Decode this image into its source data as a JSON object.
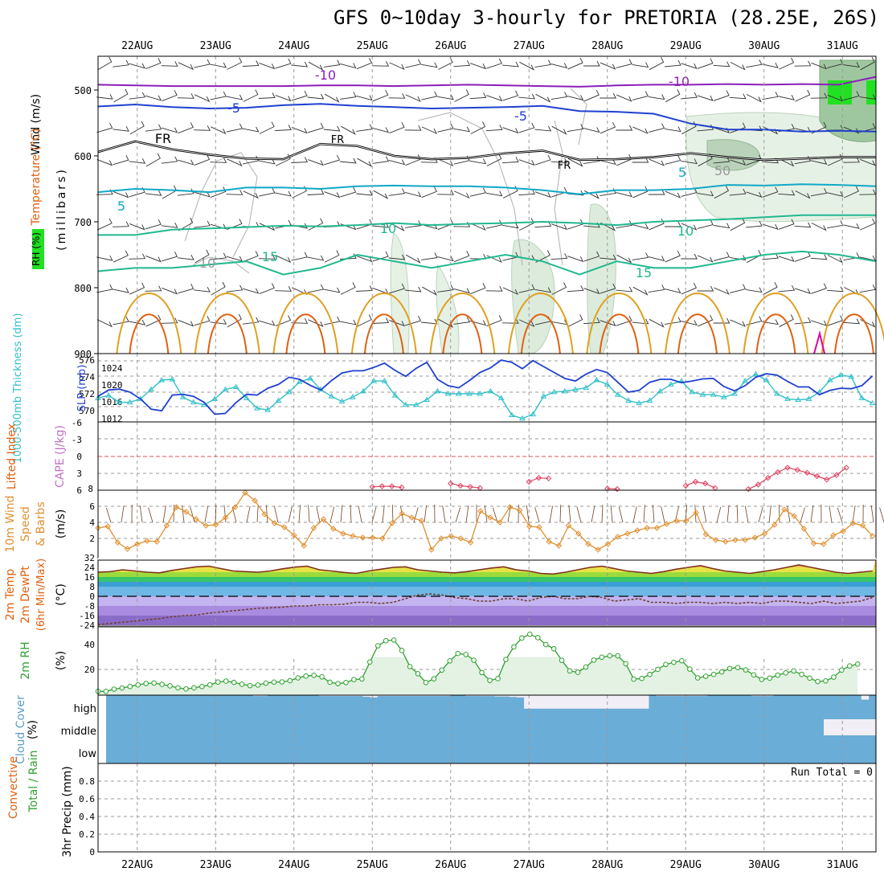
{
  "title": "GFS 0~10day 3-hourly for PRETORIA (28.25E, 26S)",
  "dates": [
    "22AUG",
    "23AUG",
    "24AUG",
    "25AUG",
    "26AUG",
    "27AUG",
    "28AUG",
    "29AUG",
    "30AUG",
    "31AUG"
  ],
  "colors": {
    "purple": "#8b1fb8",
    "blue": "#2040d0",
    "teal": "#10a8c8",
    "green": "#20b890",
    "orange": "#e0a020",
    "red": "#e06010",
    "magenta": "#e000a0",
    "slp": "#2040d0",
    "thick": "#30c0c8",
    "cape": "#e04060",
    "wind": "#e09030",
    "rh": "#30a030",
    "cloud": "#6aadd6"
  },
  "labels": {
    "p1_axis": "Wind (m/s)",
    "p1_temp": "Temperature (°C)",
    "p1_rh": "RH (%)",
    "p1_mb": "(millibars)",
    "p2_thick": "1000-500mb Thickness (dm)",
    "p2_slp": "SLP (mb)",
    "p3_li": "Lifted Index",
    "p3_cape": "CAPE (J/kg)",
    "p4_a": "10m Wind",
    "p4_b": "Speed",
    "p4_c": "& Barbs",
    "p4_unit": "(m/s)",
    "p5_a": "2m Temp",
    "p5_b": "2m DewPt",
    "p5_c": "(6hr Min/Max)",
    "p5_unit": "(°C)",
    "p6_a": "2m RH",
    "p6_unit": "(%)",
    "p7_a": "Cloud Cover",
    "p7_unit": "(%)",
    "p8_a": "Total / Rain",
    "p8_b": "Convective",
    "p8_c": "3hr Precip (mm)",
    "run_total": "Run Total = 0"
  },
  "chart_data": [
    {
      "type": "contour",
      "name": "upper-air",
      "y_ticks": [
        "500",
        "600",
        "700",
        "800",
        "900"
      ],
      "contour_labels": [
        {
          "level": "-10",
          "series": "temperature"
        },
        {
          "level": "-5",
          "series": "temperature"
        },
        {
          "level": "FR",
          "series": "freezing level"
        },
        {
          "level": "5",
          "series": "temperature"
        },
        {
          "level": "10",
          "series": "temperature"
        },
        {
          "level": "15",
          "series": "temperature"
        },
        {
          "level": "10",
          "series": "RH"
        },
        {
          "level": "50",
          "series": "RH"
        }
      ],
      "isotherms": [
        {
          "level": -10,
          "color": "purple",
          "mb": [
            492,
            493,
            494,
            494,
            494,
            494,
            493,
            493,
            494,
            493,
            492,
            493,
            494,
            495,
            493,
            492,
            492,
            491,
            492,
            491,
            492,
            480
          ]
        },
        {
          "level": -5,
          "color": "blue",
          "mb": [
            525,
            522,
            526,
            528,
            527,
            523,
            521,
            524,
            526,
            528,
            527,
            526,
            524,
            532,
            533,
            536,
            551,
            560,
            560,
            563,
            562,
            563
          ]
        },
        {
          "level": 0,
          "color": "black",
          "mb": [
            594,
            578,
            590,
            598,
            604,
            605,
            582,
            585,
            600,
            605,
            603,
            596,
            592,
            606,
            605,
            602,
            596,
            602,
            606,
            604,
            602,
            602
          ]
        },
        {
          "level": 5,
          "color": "teal",
          "mb": [
            655,
            650,
            652,
            655,
            648,
            648,
            650,
            646,
            645,
            646,
            646,
            648,
            652,
            658,
            652,
            652,
            650,
            644,
            645,
            643,
            644,
            646
          ]
        },
        {
          "level": 10,
          "color": "green",
          "mb": [
            720,
            720,
            712,
            710,
            708,
            706,
            707,
            705,
            702,
            705,
            703,
            702,
            700,
            702,
            705,
            700,
            698,
            696,
            693,
            690,
            690,
            690
          ]
        },
        {
          "level": 15,
          "color": "green",
          "mb": [
            775,
            770,
            770,
            765,
            760,
            780,
            770,
            750,
            760,
            770,
            760,
            750,
            760,
            780,
            760,
            770,
            770,
            760,
            750,
            745,
            750,
            760
          ]
        }
      ]
    },
    {
      "type": "line",
      "name": "slp-thickness",
      "y_left": {
        "label": "1000-500mb Thickness (dm)",
        "ticks": [
          "570",
          "572",
          "574",
          "576"
        ],
        "ylim": [
          569,
          577
        ]
      },
      "y_right": {
        "label": "SLP (mb)",
        "ticks": [
          "1012",
          "1016",
          "1020",
          "1024"
        ],
        "ylim": [
          1010,
          1026
        ]
      },
      "x_step_days": 0.125,
      "series": [
        {
          "name": "Thickness",
          "color": "thick",
          "marker": "triangle",
          "values": [
            571.8,
            572.1,
            571.3,
            571.3,
            571.7,
            572.8,
            573.9,
            574.0,
            571.9,
            571.3,
            571.0,
            571.7,
            572.8,
            573.1,
            571.8,
            570.6,
            570.4,
            571.5,
            572.5,
            573.7,
            574.1,
            572.8,
            572.0,
            571.4,
            571.9,
            572.6,
            573.8,
            573.8,
            572.1,
            571.0,
            571.0,
            571.6,
            572.6,
            572.3,
            572.3,
            572.3,
            572.3,
            572.6,
            571.8,
            569.8,
            569.4,
            569.9,
            572.0,
            572.5,
            572.6,
            572.8,
            573.0,
            573.9,
            573.4,
            572.2,
            571.5,
            571.2,
            571.5,
            572.6,
            573.4,
            573.8,
            572.5,
            572.2,
            572.2,
            571.9,
            572.3,
            573.8,
            574.6,
            573.9,
            572.3,
            571.7,
            571.6,
            571.7,
            572.5,
            573.9,
            574.5,
            574.3,
            571.8,
            571.2
          ]
        },
        {
          "name": "SLP",
          "color": "slp",
          "marker": "none",
          "values": [
            1016.0,
            1017.5,
            1017.7,
            1017.0,
            1015.4,
            1013.0,
            1012.6,
            1016.3,
            1016.5,
            1016.0,
            1014.6,
            1011.8,
            1012.0,
            1014.5,
            1016.5,
            1016.3,
            1017.9,
            1018.8,
            1020.5,
            1020.0,
            1018.6,
            1017.5,
            1019.7,
            1021.5,
            1022.0,
            1022.0,
            1022.8,
            1023.8,
            1022.1,
            1020.7,
            1022.6,
            1024.0,
            1020.0,
            1018.5,
            1018.0,
            1019.7,
            1021.6,
            1022.7,
            1024.5,
            1024.0,
            1022.5,
            1024.4,
            1023.0,
            1021.6,
            1020.2,
            1019.6,
            1021.2,
            1022.3,
            1021.6,
            1019.3,
            1017.0,
            1017.4,
            1019.3,
            1020.0,
            1020.0,
            1019.2,
            1019.6,
            1020.1,
            1020.2,
            1018.3,
            1017.3,
            1018.5,
            1020.5,
            1021.3,
            1021.0,
            1019.5,
            1018.2,
            1018.2,
            1016.4,
            1017.4,
            1017.9,
            1017.8,
            1018.5,
            1020.8
          ]
        }
      ]
    },
    {
      "type": "line",
      "name": "lifted-index-cape",
      "y_left": {
        "label": "Lifted Index",
        "ticks": [
          "-6",
          "-3",
          "0",
          "3",
          "6"
        ],
        "ylim": [
          -6,
          6
        ]
      },
      "y_right": {
        "label": "CAPE (J/kg)",
        "ticks": [
          "8"
        ]
      },
      "zero_line": 0,
      "segments": [
        {
          "name": "LI",
          "color": "cape",
          "start_day": 3.5,
          "values": [
            5.4,
            5.3,
            5.3,
            5.5
          ]
        },
        {
          "name": "LI",
          "color": "cape",
          "start_day": 4.5,
          "values": [
            4.8,
            5.2,
            5.4,
            5.6
          ]
        },
        {
          "name": "LI",
          "color": "cape",
          "start_day": 5.5,
          "values": [
            4.5,
            3.8,
            3.9
          ]
        },
        {
          "name": "LI",
          "color": "cape",
          "start_day": 6.5,
          "values": [
            5.7,
            5.8
          ]
        },
        {
          "name": "LI",
          "color": "cape",
          "start_day": 7.5,
          "values": [
            5.2,
            4.5,
            4.8,
            5.6
          ]
        },
        {
          "name": "LI",
          "color": "cape",
          "start_day": 8.3,
          "values": [
            5.8,
            5.0,
            3.8,
            2.8,
            2.0,
            2.4,
            2.9,
            3.5,
            4.1,
            3.3,
            2.0
          ]
        }
      ]
    },
    {
      "type": "line",
      "name": "10m-wind",
      "y_left": {
        "label": "Speed (m/s)",
        "ticks": [
          "2",
          "4",
          "6"
        ],
        "ylim": [
          0,
          8
        ]
      },
      "x_step_days": 0.125,
      "series": [
        {
          "name": "Wind Speed",
          "color": "wind",
          "marker": "diamond",
          "values": [
            3.3,
            3.5,
            1.5,
            0.7,
            1.3,
            1.7,
            1.6,
            3.6,
            5.9,
            5.3,
            4.4,
            3.6,
            3.7,
            4.6,
            5.9,
            7.7,
            6.7,
            5.0,
            3.9,
            3.4,
            2.4,
            1.1,
            3.3,
            4.4,
            3.2,
            2.6,
            2.3,
            2.1,
            2.1,
            2.0,
            3.9,
            5.1,
            4.6,
            4.2,
            0.6,
            2.0,
            2.3,
            2.0,
            1.5,
            5.4,
            4.6,
            4.0,
            5.9,
            5.5,
            3.5,
            3.4,
            1.6,
            1.1,
            3.6,
            2.6,
            1.3,
            0.6,
            1.3,
            2.2,
            2.6,
            3.0,
            3.3,
            3.3,
            3.8,
            4.2,
            4.2,
            5.2,
            2.5,
            1.8,
            1.6,
            1.8,
            1.8,
            2.1,
            2.6,
            3.7,
            5.6,
            4.8,
            3.2,
            1.4,
            1.3,
            2.4,
            2.9,
            3.9,
            3.6,
            2.3
          ]
        }
      ]
    },
    {
      "type": "area",
      "name": "2m-temperature",
      "y_left": {
        "label": "(°C)",
        "ticks": [
          "32",
          "24",
          "16",
          "8",
          "0",
          "-8",
          "-16",
          "-24"
        ],
        "ylim": [
          -26,
          32
        ]
      },
      "bands": [
        "24",
        "16",
        "8",
        "0",
        "-8",
        "-16",
        "-24"
      ],
      "series": [
        {
          "name": "2m Temp",
          "color": "orange",
          "values": [
            20,
            20.5,
            22,
            21,
            20,
            19.5,
            21.5,
            23,
            24.5,
            25,
            23,
            21,
            20.5,
            20,
            21,
            22.8,
            24.2,
            25,
            22,
            21,
            19.8,
            19,
            21,
            22.5,
            24,
            24.5,
            22,
            21,
            20,
            19.5,
            20.5,
            22,
            23.5,
            24.5,
            22,
            21,
            19,
            18.5,
            20,
            22,
            24,
            25,
            23,
            21,
            20,
            19,
            20.5,
            22.5,
            24,
            25.5,
            23,
            21,
            20,
            19,
            20.5,
            22,
            24,
            26,
            24,
            22,
            20,
            19,
            20,
            21
          ]
        },
        {
          "name": "2m DewPt",
          "color": "brown",
          "values": [
            -23.5,
            -22.5,
            -21.5,
            -20.5,
            -19.5,
            -18.5,
            -17,
            -16,
            -15.5,
            -14,
            -13,
            -12,
            -11,
            -10,
            -9.5,
            -9,
            -8,
            -8,
            -7,
            -7,
            -6.5,
            -5,
            -5,
            -6,
            -5,
            -2,
            1,
            2,
            1,
            -1,
            -2,
            -4,
            -4,
            -2,
            -2,
            -4,
            -1,
            0,
            -2,
            -2,
            0,
            -1,
            -4,
            -3,
            -2,
            -5,
            -5,
            -6,
            -5,
            -5,
            -6,
            -5,
            -6,
            -5,
            -6,
            -4,
            -4,
            -5,
            -6,
            -4,
            -6,
            -5,
            -4,
            -1
          ]
        }
      ]
    },
    {
      "type": "area",
      "name": "2m-rh",
      "y_left": {
        "label": "(%)",
        "ticks": [
          "20",
          "40"
        ],
        "ylim": [
          0,
          52
        ]
      },
      "x_step_days": 0.125,
      "series": [
        {
          "name": "2m RH",
          "color": "rh",
          "marker": "circle",
          "values": [
            2.4,
            2.4,
            4.2,
            5.1,
            6.3,
            7.6,
            8.7,
            9.1,
            8.0,
            6.8,
            5.2,
            4.3,
            5.2,
            6.3,
            7.6,
            9.9,
            10.6,
            9.6,
            8.1,
            7.0,
            7.5,
            9.0,
            9.8,
            10.0,
            11.0,
            13.2,
            14.7,
            15.3,
            14.0,
            9.7,
            8.6,
            9.5,
            11.8,
            12.4,
            26.0,
            39.0,
            43.0,
            43.6,
            35.2,
            22.3,
            16.6,
            9.5,
            12.5,
            19.5,
            26.9,
            32.8,
            32.0,
            27.4,
            17.5,
            11.2,
            12.6,
            28.0,
            38.1,
            45.2,
            48.2,
            45.5,
            40.0,
            36.6,
            27.3,
            18.8,
            17.7,
            21.9,
            27.5,
            29.8,
            31.0,
            30.9,
            24.6,
            12.2,
            12.8,
            16.0,
            20.1,
            24.0,
            25.7,
            27.0,
            20.3,
            13.2,
            14.5,
            16.0,
            18.0,
            20.8,
            21.5,
            19.6,
            15.6,
            12.0,
            13.0,
            15.4,
            17.2,
            18.8,
            16.0,
            13.0,
            10.3,
            10.8,
            13.8,
            19.5,
            22.8,
            24.3
          ]
        }
      ]
    },
    {
      "type": "area",
      "name": "cloud-cover",
      "y_left": {
        "label": "(%)",
        "ticks": [
          "high",
          "middle",
          "low"
        ]
      },
      "high_cover_pct": [
        100,
        100,
        100,
        100,
        100,
        100,
        100,
        100,
        100,
        100,
        100,
        100,
        100,
        100,
        100,
        100,
        100,
        100,
        100,
        100,
        96,
        96,
        100,
        100,
        100,
        100,
        100,
        100,
        100,
        96,
        96,
        96,
        96,
        96,
        96,
        93,
        90,
        96,
        96,
        96,
        96,
        96,
        96,
        96,
        96,
        96,
        96,
        100,
        100,
        96,
        96,
        96,
        96,
        94,
        94,
        92,
        90,
        40,
        40,
        40,
        40,
        40,
        40,
        40,
        40,
        40,
        40,
        40,
        40,
        40,
        40,
        40,
        40,
        40,
        100,
        96,
        96,
        96,
        96,
        96,
        96,
        96,
        100,
        100,
        100,
        100,
        100,
        100,
        96,
        96,
        96,
        100,
        100,
        100,
        100,
        100,
        100,
        100,
        100,
        100,
        100,
        100,
        100,
        80,
        100
      ]
    },
    {
      "type": "bar",
      "name": "3hr-precip",
      "y_left": {
        "label": "3hr Precip (mm)",
        "ticks": [
          "0",
          "0.2",
          "0.4",
          "0.6",
          "0.8"
        ],
        "ylim": [
          0,
          0.9
        ]
      },
      "run_total": 0,
      "values": []
    }
  ]
}
